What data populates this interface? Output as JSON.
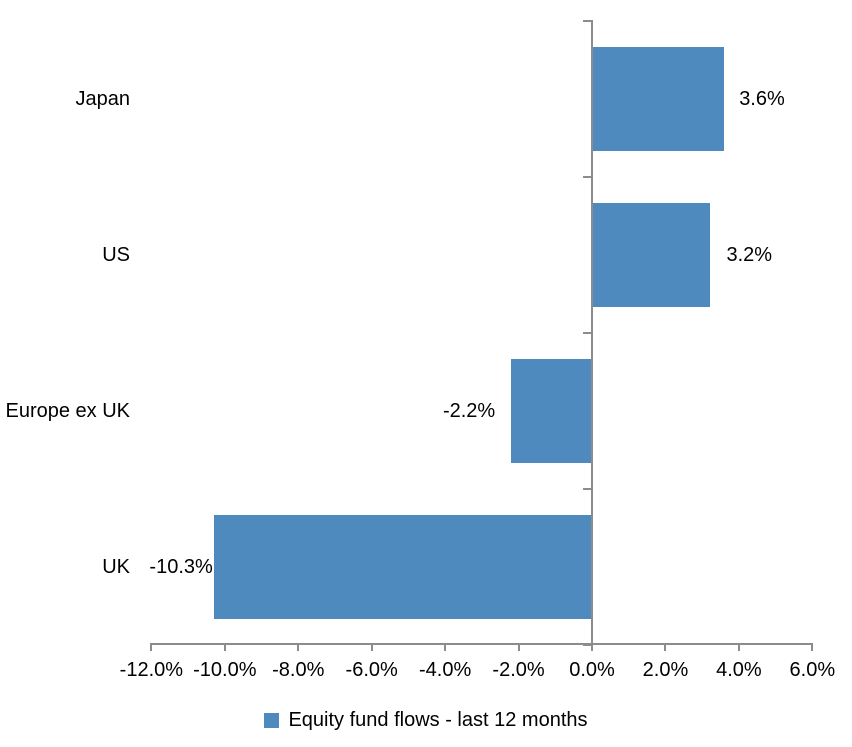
{
  "chart_data": {
    "type": "bar",
    "orientation": "horizontal",
    "title": "",
    "categories": [
      "Japan",
      "US",
      "Europe ex UK",
      "UK"
    ],
    "values": [
      3.6,
      3.2,
      -2.2,
      -10.3
    ],
    "data_labels": [
      "3.6%",
      "3.2%",
      "-2.2%",
      "-10.3%"
    ],
    "series_name": "Equity fund flows - last 12 months",
    "legend": {
      "label": "Equity fund flows - last 12 months",
      "position": "bottom"
    },
    "x_axis": {
      "range": [
        -12,
        6
      ],
      "grid": false,
      "ticks": [
        {
          "value": -12,
          "label": "-12.0%"
        },
        {
          "value": -10,
          "label": "-10.0%"
        },
        {
          "value": -8,
          "label": "-8.0%"
        },
        {
          "value": -6,
          "label": "-6.0%"
        },
        {
          "value": -4,
          "label": "-4.0%"
        },
        {
          "value": -2,
          "label": "-2.0%"
        },
        {
          "value": 0,
          "label": "0.0%"
        },
        {
          "value": 2,
          "label": "2.0%"
        },
        {
          "value": 4,
          "label": "4.0%"
        },
        {
          "value": 6,
          "label": "6.0%"
        }
      ]
    },
    "colors": {
      "bar": "#4E8ABE",
      "axis": "#8C8C8C",
      "text": "#000000",
      "background": "#FFFFFF"
    }
  }
}
